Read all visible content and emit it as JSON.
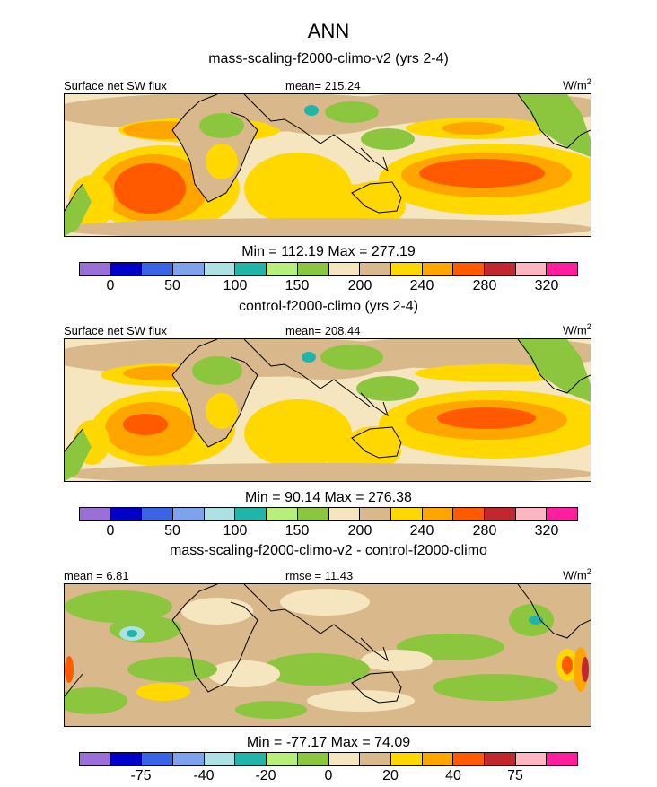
{
  "title": "ANN",
  "palette": {
    "colors": [
      "#9a6fd8",
      "#0000c8",
      "#3a64e6",
      "#7ea2ec",
      "#ade1e3",
      "#20b5a8",
      "#b8ee7a",
      "#8cc63f",
      "#f5e6c0",
      "#d9b98c",
      "#ffd800",
      "#ffa500",
      "#ff5a00",
      "#c0282d",
      "#ffb6c1",
      "#ff1f9e"
    ],
    "ocean_base": "#f5e6c0"
  },
  "chart_data": [
    {
      "type": "heatmap",
      "title": "mass-scaling-f2000-climo-v2 (yrs 2-4)",
      "left_label": "Surface net SW flux",
      "center_label": "mean= 215.24",
      "units_base": "W/m",
      "units_sup": "2",
      "minmax": "Min = 112.19 Max = 277.19",
      "colorbar_ticks": [
        "0",
        "50",
        "100",
        "150",
        "200",
        "240",
        "280",
        "320"
      ],
      "min": 112.19,
      "max": 277.19,
      "mean": 215.24
    },
    {
      "type": "heatmap",
      "title": "control-f2000-climo (yrs 2-4)",
      "left_label": "Surface net SW flux",
      "center_label": "mean= 208.44",
      "units_base": "W/m",
      "units_sup": "2",
      "minmax": "Min =  90.14 Max = 276.38",
      "colorbar_ticks": [
        "0",
        "50",
        "100",
        "150",
        "200",
        "240",
        "280",
        "320"
      ],
      "min": 90.14,
      "max": 276.38,
      "mean": 208.44
    },
    {
      "type": "heatmap",
      "title": "mass-scaling-f2000-climo-v2 - control-f2000-climo",
      "left_label": "mean =   6.81",
      "center_label": "rmse =  11.43",
      "units_base": "W/m",
      "units_sup": "2",
      "minmax": "Min = -77.17 Max =  74.09",
      "colorbar_ticks": [
        "-75",
        "-40",
        "-20",
        "0",
        "20",
        "40",
        "75"
      ],
      "min": -77.17,
      "max": 74.09,
      "mean": 6.81,
      "rmse": 11.43
    }
  ]
}
